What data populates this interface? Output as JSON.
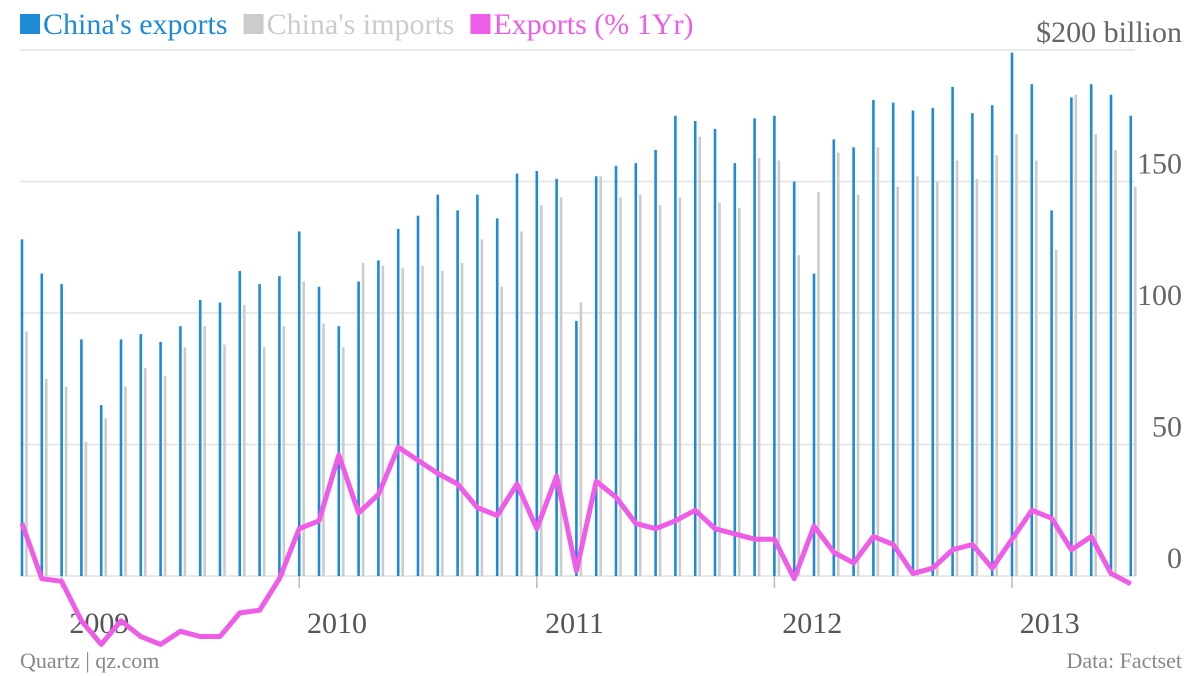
{
  "chart_data": {
    "type": "bar-line",
    "categories": [
      null,
      null,
      null,
      "2009",
      null,
      null,
      null,
      null,
      null,
      null,
      null,
      null,
      null,
      null,
      null,
      "2010",
      null,
      null,
      null,
      null,
      null,
      null,
      null,
      null,
      null,
      null,
      null,
      "2011",
      null,
      null,
      null,
      null,
      null,
      null,
      null,
      null,
      null,
      null,
      null,
      "2012",
      null,
      null,
      null,
      null,
      null,
      null,
      null,
      null,
      null,
      null,
      null,
      "2013",
      null,
      null,
      null,
      null,
      null
    ],
    "series": [
      {
        "name": "China's exports",
        "color": "#1f8ad6",
        "kind": "bar",
        "values": [
          128,
          115,
          111,
          90,
          65,
          90,
          92,
          89,
          95,
          105,
          104,
          116,
          111,
          114,
          131,
          110,
          95,
          112,
          120,
          132,
          137,
          145,
          139,
          145,
          136,
          153,
          154,
          151,
          97,
          152,
          156,
          157,
          162,
          175,
          173,
          170,
          157,
          174,
          175,
          150,
          115,
          166,
          163,
          181,
          180,
          177,
          178,
          186,
          176,
          179,
          199,
          187,
          139,
          182,
          187,
          183,
          175
        ]
      },
      {
        "name": "China's imports",
        "color": "#cccccc",
        "kind": "bar",
        "values": [
          93,
          75,
          72,
          51,
          60,
          72,
          79,
          76,
          87,
          95,
          88,
          103,
          87,
          95,
          112,
          96,
          87,
          119,
          118,
          117,
          118,
          116,
          119,
          128,
          110,
          131,
          141,
          144,
          104,
          152,
          144,
          145,
          141,
          144,
          167,
          142,
          140,
          159,
          158,
          122,
          146,
          161,
          145,
          163,
          148,
          152,
          150,
          158,
          151,
          160,
          168,
          158,
          124,
          183,
          168,
          162,
          148
        ]
      },
      {
        "name": "Exports (% 1Yr)",
        "color": "#ee5ce8",
        "kind": "line",
        "values": [
          20,
          -1,
          -2,
          -17,
          -26,
          -17,
          -23,
          -26,
          -21,
          -23,
          -23,
          -14,
          -13,
          -1,
          18,
          21,
          46,
          24,
          31,
          49,
          44,
          39,
          35,
          26,
          23,
          35,
          18,
          38,
          2,
          36,
          30,
          20,
          18,
          21,
          25,
          18,
          16,
          14,
          14,
          -1,
          19,
          9,
          5,
          15,
          12,
          1,
          3,
          10,
          12,
          3,
          14,
          25,
          22,
          10,
          15,
          1,
          -3
        ]
      }
    ],
    "ylim": [
      -38,
      200
    ],
    "yticks": [
      0,
      50,
      100,
      150,
      {
        "value": 200,
        "label": "$200 billion"
      }
    ],
    "grid": true,
    "footer_left": "Quartz | qz.com",
    "footer_right": "Data: Factset"
  }
}
